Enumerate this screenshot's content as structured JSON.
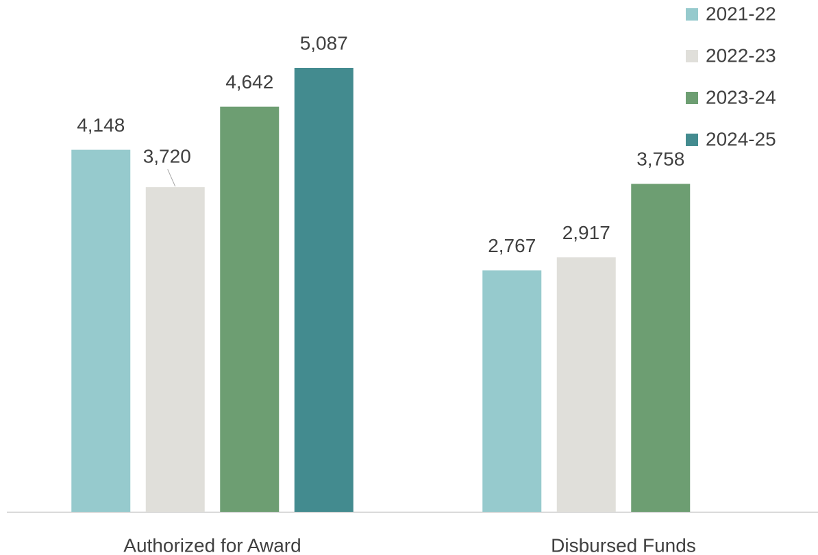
{
  "chart_data": {
    "type": "bar",
    "categories": [
      "Authorized for Award",
      "Disbursed Funds"
    ],
    "series": [
      {
        "name": "2021-22",
        "color": "#96cacd",
        "values": [
          4148,
          2767
        ],
        "value_labels": [
          "4,148",
          "2,767"
        ]
      },
      {
        "name": "2022-23",
        "color": "#e0dfda",
        "values": [
          3720,
          2917
        ],
        "value_labels": [
          "3,720",
          "2,917"
        ]
      },
      {
        "name": "2023-24",
        "color": "#6d9e72",
        "values": [
          4642,
          3758
        ],
        "value_labels": [
          "4,642",
          "3,758"
        ]
      },
      {
        "name": "2024-25",
        "color": "#438b8f",
        "values": [
          5087,
          null
        ],
        "value_labels": [
          "5,087",
          null
        ]
      }
    ],
    "legend": "top-right"
  }
}
